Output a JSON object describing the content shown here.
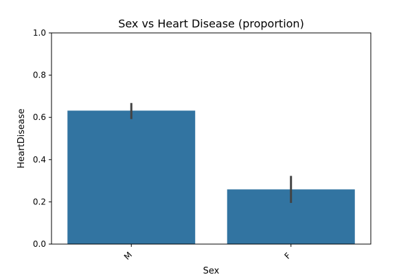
{
  "chart_data": {
    "type": "bar",
    "title": "Sex vs Heart Disease (proportion)",
    "xlabel": "Sex",
    "ylabel": "HeartDisease",
    "categories": [
      "M",
      "F"
    ],
    "values": [
      0.632,
      0.259
    ],
    "error_bars": [
      [
        0.592,
        0.668
      ],
      [
        0.195,
        0.323
      ]
    ],
    "ylim": [
      0.0,
      1.0
    ],
    "yticks": [
      "0.0",
      "0.2",
      "0.4",
      "0.6",
      "0.8",
      "1.0"
    ],
    "grid": false,
    "legend": "none",
    "bar_color": "#3274a1",
    "error_color": "#424242"
  }
}
